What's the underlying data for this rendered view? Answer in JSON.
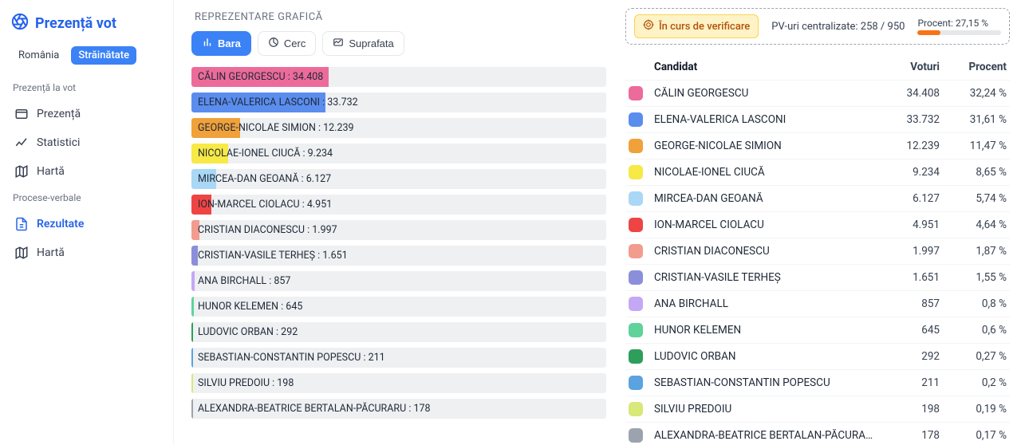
{
  "app": {
    "title": "Prezență vot"
  },
  "region_toggle": {
    "options": [
      "România",
      "Străinătate"
    ],
    "active_index": 1
  },
  "sidebar": {
    "sections": [
      {
        "title": "Prezență la vot",
        "items": [
          {
            "label": "Prezență",
            "icon": "presence",
            "active": false
          },
          {
            "label": "Statistici",
            "icon": "stats",
            "active": false
          },
          {
            "label": "Hartă",
            "icon": "map",
            "active": false
          }
        ]
      },
      {
        "title": "Procese-verbale",
        "items": [
          {
            "label": "Rezultate",
            "icon": "doc",
            "active": true
          },
          {
            "label": "Hartă",
            "icon": "map",
            "active": false
          }
        ]
      }
    ]
  },
  "chart": {
    "title": "REPREZENTARE GRAFICĂ",
    "title_color": "#6b7280",
    "type_buttons": [
      {
        "label": "Bara",
        "icon": "bar",
        "active": true
      },
      {
        "label": "Cerc",
        "icon": "pie",
        "active": false
      },
      {
        "label": "Suprafata",
        "icon": "area",
        "active": false
      }
    ],
    "bar_track_color": "#eef0f2",
    "label_fontsize": 12.5,
    "max_value": 34408
  },
  "status": {
    "verifying_label": "În curs de verificare",
    "verifying_bg": "#fef3c7",
    "verifying_border": "#fcd34d",
    "verifying_text_color": "#b45309",
    "pv_label": "PV-uri centralizate: 258 / 950",
    "progress_label": "Procent: 27,15 %",
    "progress_pct": 27.15,
    "progress_fill_color": "#f97316",
    "progress_track_color": "#e5e7eb",
    "border_color": "#9ca3af"
  },
  "table": {
    "headers": {
      "candidate": "Candidat",
      "votes": "Voturi",
      "percent": "Procent"
    },
    "header_fontweight": 700,
    "row_border_color": "#f3f4f6"
  },
  "candidates": [
    {
      "name": "CĂLIN GEORGESCU",
      "votes": "34.408",
      "value": 34408,
      "percent": "32,24 %",
      "color": "#ec6b9a"
    },
    {
      "name": "ELENA-VALERICA LASCONI",
      "votes": "33.732",
      "value": 33732,
      "percent": "31,61 %",
      "color": "#5b8def"
    },
    {
      "name": "GEORGE-NICOLAE SIMION",
      "votes": "12.239",
      "value": 12239,
      "percent": "11,47 %",
      "color": "#f0a13a"
    },
    {
      "name": "NICOLAE-IONEL CIUCĂ",
      "votes": "9.234",
      "value": 9234,
      "percent": "8,65 %",
      "color": "#f7e946"
    },
    {
      "name": "MIRCEA-DAN GEOANĂ",
      "votes": "6.127",
      "value": 6127,
      "percent": "5,74 %",
      "color": "#a9d7f5"
    },
    {
      "name": "ION-MARCEL CIOLACU",
      "votes": "4.951",
      "value": 4951,
      "percent": "4,64 %",
      "color": "#ef4444"
    },
    {
      "name": "CRISTIAN DIACONESCU",
      "votes": "1.997",
      "value": 1997,
      "percent": "1,87 %",
      "color": "#f29b8e"
    },
    {
      "name": "CRISTIAN-VASILE TERHEȘ",
      "votes": "1.651",
      "value": 1651,
      "percent": "1,55 %",
      "color": "#8b8fd9"
    },
    {
      "name": "ANA BIRCHALL",
      "votes": "857",
      "value": 857,
      "percent": "0,8 %",
      "color": "#c4a7f5"
    },
    {
      "name": "HUNOR KELEMEN",
      "votes": "645",
      "value": 645,
      "percent": "0,6 %",
      "color": "#5fd39a"
    },
    {
      "name": "LUDOVIC ORBAN",
      "votes": "292",
      "value": 292,
      "percent": "0,27 %",
      "color": "#2e9e5b"
    },
    {
      "name": "SEBASTIAN-CONSTANTIN POPESCU",
      "votes": "211",
      "value": 211,
      "percent": "0,2 %",
      "color": "#5aa3e0"
    },
    {
      "name": "SILVIU PREDOIU",
      "votes": "198",
      "value": 198,
      "percent": "0,19 %",
      "color": "#d8e879"
    },
    {
      "name": "ALEXANDRA-BEATRICE BERTALAN-PĂCURARU",
      "votes": "178",
      "value": 178,
      "percent": "0,17 %",
      "color": "#9ca3af"
    }
  ]
}
